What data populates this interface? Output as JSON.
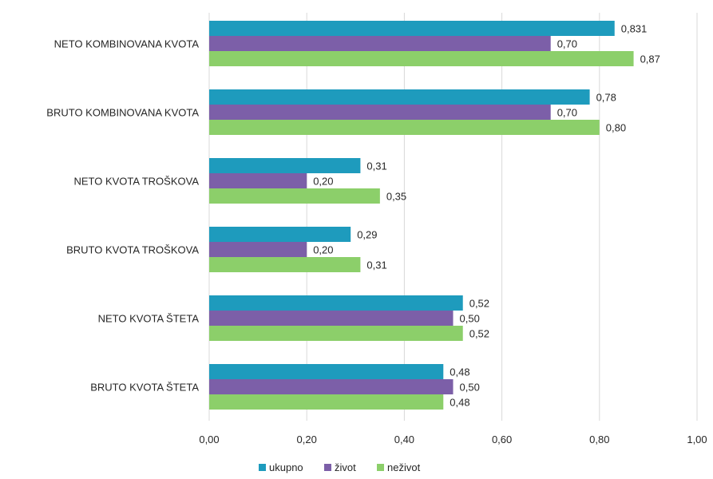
{
  "chart_data": {
    "type": "bar",
    "orientation": "horizontal",
    "categories": [
      "NETO KOMBINOVANA KVOTA",
      "BRUTO KOMBINOVANA KVOTA",
      "NETO KVOTA TROŠKOVA",
      "BRUTO KVOTA TROŠKOVA",
      "NETO KVOTA ŠTETA",
      "BRUTO KVOTA ŠTETA"
    ],
    "series": [
      {
        "name": "ukupno",
        "color": "#1e9bbd",
        "values": [
          0.831,
          0.78,
          0.31,
          0.29,
          0.52,
          0.48
        ],
        "labels": [
          "0,831",
          "0,78",
          "0,31",
          "0,29",
          "0,52",
          "0,48"
        ]
      },
      {
        "name": "život",
        "color": "#7c5fa8",
        "values": [
          0.7,
          0.7,
          0.2,
          0.2,
          0.5,
          0.5
        ],
        "labels": [
          "0,70",
          "0,70",
          "0,20",
          "0,20",
          "0,50",
          "0,50"
        ]
      },
      {
        "name": "neživot",
        "color": "#8ccf6a",
        "values": [
          0.87,
          0.8,
          0.35,
          0.31,
          0.52,
          0.48
        ],
        "labels": [
          "0,87",
          "0,80",
          "0,35",
          "0,31",
          "0,52",
          "0,48"
        ]
      }
    ],
    "xlim": [
      0,
      1.0
    ],
    "ticks": [
      0,
      0.2,
      0.4,
      0.6,
      0.8,
      1.0
    ],
    "tick_labels": [
      "0,00",
      "0,20",
      "0,40",
      "0,60",
      "0,80",
      "1,00"
    ],
    "grid": true,
    "legend_position": "bottom"
  }
}
